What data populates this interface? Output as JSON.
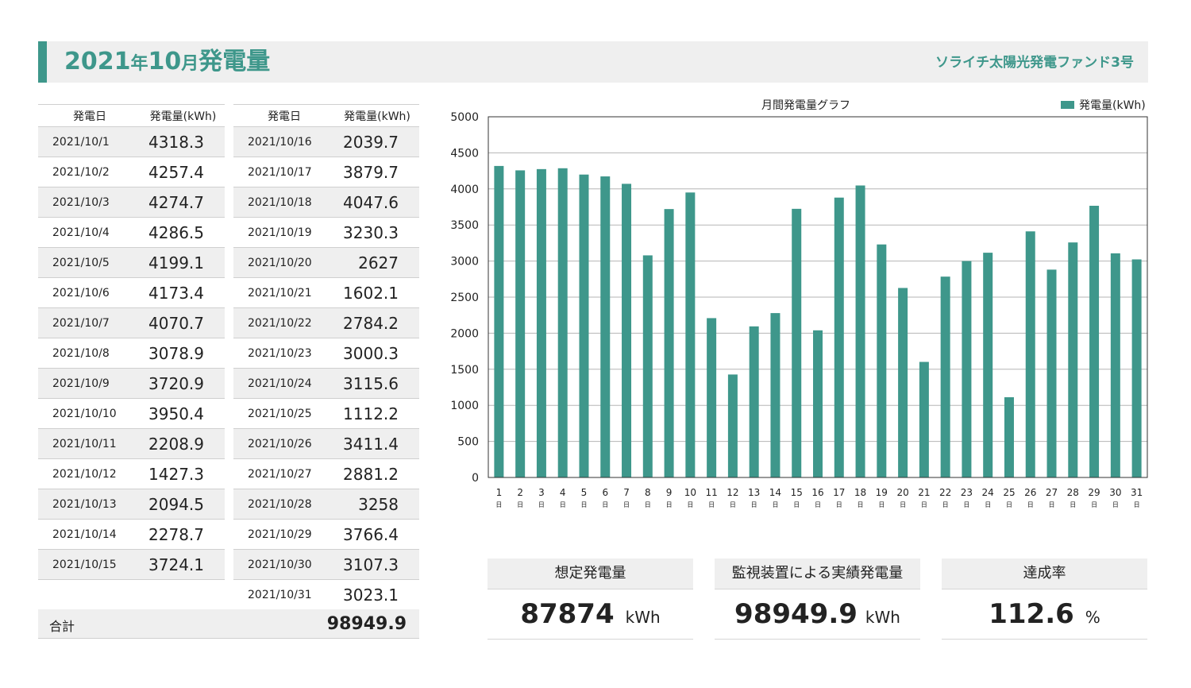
{
  "header": {
    "year": "2021",
    "year_suffix": "年",
    "month": "10",
    "month_suffix": "月",
    "title": "発電量",
    "fund_name": "ソライチ太陽光発電ファンド3号"
  },
  "table": {
    "col_date": "発電日",
    "col_value": "発電量(kWh)",
    "left_rows": [
      {
        "date": "2021/10/1",
        "value": "4318.3"
      },
      {
        "date": "2021/10/2",
        "value": "4257.4"
      },
      {
        "date": "2021/10/3",
        "value": "4274.7"
      },
      {
        "date": "2021/10/4",
        "value": "4286.5"
      },
      {
        "date": "2021/10/5",
        "value": "4199.1"
      },
      {
        "date": "2021/10/6",
        "value": "4173.4"
      },
      {
        "date": "2021/10/7",
        "value": "4070.7"
      },
      {
        "date": "2021/10/8",
        "value": "3078.9"
      },
      {
        "date": "2021/10/9",
        "value": "3720.9"
      },
      {
        "date": "2021/10/10",
        "value": "3950.4"
      },
      {
        "date": "2021/10/11",
        "value": "2208.9"
      },
      {
        "date": "2021/10/12",
        "value": "1427.3"
      },
      {
        "date": "2021/10/13",
        "value": "2094.5"
      },
      {
        "date": "2021/10/14",
        "value": "2278.7"
      },
      {
        "date": "2021/10/15",
        "value": "3724.1"
      }
    ],
    "right_rows": [
      {
        "date": "2021/10/16",
        "value": "2039.7"
      },
      {
        "date": "2021/10/17",
        "value": "3879.7"
      },
      {
        "date": "2021/10/18",
        "value": "4047.6"
      },
      {
        "date": "2021/10/19",
        "value": "3230.3"
      },
      {
        "date": "2021/10/20",
        "value": "2627"
      },
      {
        "date": "2021/10/21",
        "value": "1602.1"
      },
      {
        "date": "2021/10/22",
        "value": "2784.2"
      },
      {
        "date": "2021/10/23",
        "value": "3000.3"
      },
      {
        "date": "2021/10/24",
        "value": "3115.6"
      },
      {
        "date": "2021/10/25",
        "value": "1112.2"
      },
      {
        "date": "2021/10/26",
        "value": "3411.4"
      },
      {
        "date": "2021/10/27",
        "value": "2881.2"
      },
      {
        "date": "2021/10/28",
        "value": "3258"
      },
      {
        "date": "2021/10/29",
        "value": "3766.4"
      },
      {
        "date": "2021/10/30",
        "value": "3107.3"
      },
      {
        "date": "2021/10/31",
        "value": "3023.1"
      }
    ],
    "total_label": "合計",
    "total_value": "98949.9"
  },
  "summary": {
    "expected": {
      "label": "想定発電量",
      "value": "87874",
      "unit": "kWh"
    },
    "actual": {
      "label": "監視装置による実績発電量",
      "value": "98949.9",
      "unit": "kWh"
    },
    "rate": {
      "label": "達成率",
      "value": "112.6",
      "unit": "%"
    }
  },
  "chart_data": {
    "type": "bar",
    "title": "月間発電量グラフ",
    "series": [
      {
        "name": "発電量(kWh)",
        "color": "#3e978b",
        "values": [
          4318.3,
          4257.4,
          4274.7,
          4286.5,
          4199.1,
          4173.4,
          4070.7,
          3078.9,
          3720.9,
          3950.4,
          2208.9,
          1427.3,
          2094.5,
          2278.7,
          3724.1,
          2039.7,
          3879.7,
          4047.6,
          3230.3,
          2627,
          1602.1,
          2784.2,
          3000.3,
          3115.6,
          1112.2,
          3411.4,
          2881.2,
          3258,
          3766.4,
          3107.3,
          3023.1
        ]
      }
    ],
    "categories": [
      "1",
      "2",
      "3",
      "4",
      "5",
      "6",
      "7",
      "8",
      "9",
      "10",
      "11",
      "12",
      "13",
      "14",
      "15",
      "16",
      "17",
      "18",
      "19",
      "20",
      "21",
      "22",
      "23",
      "24",
      "25",
      "26",
      "27",
      "28",
      "29",
      "30",
      "31"
    ],
    "category_suffix": "日",
    "yticks": [
      "0",
      "500",
      "1000",
      "1500",
      "2000",
      "2500",
      "3000",
      "3500",
      "4000",
      "4500",
      "5000"
    ],
    "ylim": [
      0,
      5000
    ],
    "grid": true,
    "legend_position": "top-right"
  }
}
